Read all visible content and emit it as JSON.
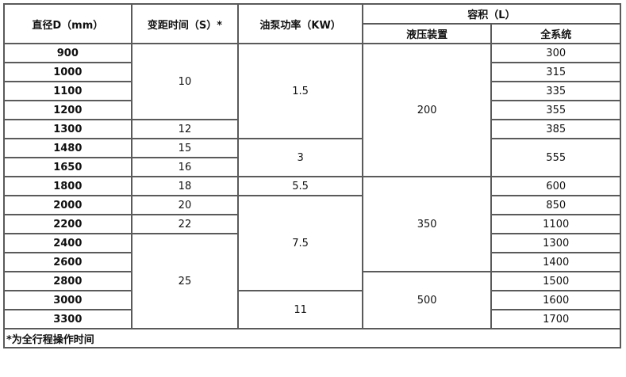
{
  "headers": {
    "diameter": "直径D（mm）",
    "pitch_time": "变距时间（S）*",
    "pump_power": "油泵功率（KW）",
    "volume": "容积（L）",
    "hydraulic": "液压装置",
    "system": "全系统"
  },
  "columns": {
    "diameter": [
      "900",
      "1000",
      "1100",
      "1200",
      "1300",
      "1480",
      "1650",
      "1800",
      "2000",
      "2200",
      "2400",
      "2600",
      "2800",
      "3000",
      "3300"
    ],
    "pitch_time": [
      {
        "v": "10",
        "span": 4
      },
      {
        "v": "12",
        "span": 1
      },
      {
        "v": "15",
        "span": 1
      },
      {
        "v": "16",
        "span": 1
      },
      {
        "v": "18",
        "span": 1
      },
      {
        "v": "20",
        "span": 1
      },
      {
        "v": "22",
        "span": 1
      },
      {
        "v": "25",
        "span": 5
      }
    ],
    "pump_power": [
      {
        "v": "1.5",
        "span": 5
      },
      {
        "v": "3",
        "span": 2
      },
      {
        "v": "5.5",
        "span": 1
      },
      {
        "v": "7.5",
        "span": 5
      },
      {
        "v": "11",
        "span": 2
      }
    ],
    "hydraulic": [
      {
        "v": "200",
        "span": 7
      },
      {
        "v": "350",
        "span": 5
      },
      {
        "v": "500",
        "span": 3
      }
    ],
    "system": [
      {
        "v": "300",
        "span": 1
      },
      {
        "v": "315",
        "span": 1
      },
      {
        "v": "335",
        "span": 1
      },
      {
        "v": "355",
        "span": 1
      },
      {
        "v": "385",
        "span": 1
      },
      {
        "v": "555",
        "span": 2
      },
      {
        "v": "600",
        "span": 1
      },
      {
        "v": "850",
        "span": 1
      },
      {
        "v": "1100",
        "span": 1
      },
      {
        "v": "1300",
        "span": 1
      },
      {
        "v": "1400",
        "span": 1
      },
      {
        "v": "1500",
        "span": 1
      },
      {
        "v": "1600",
        "span": 1
      },
      {
        "v": "1700",
        "span": 1
      }
    ]
  },
  "footnote": "*为全行程操作时间"
}
